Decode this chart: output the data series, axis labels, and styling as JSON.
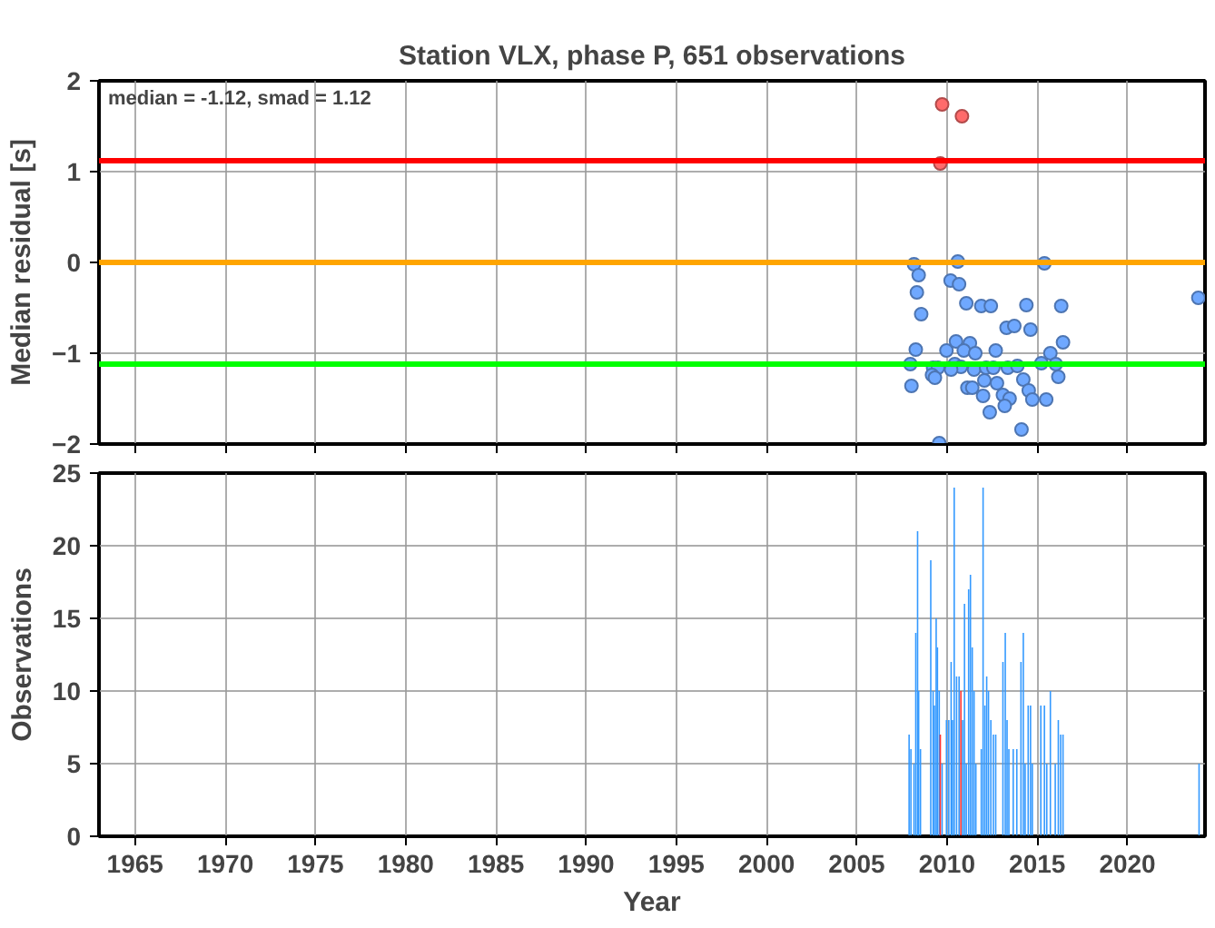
{
  "chart_data": [
    {
      "type": "scatter",
      "title": "Station VLX, phase P, 651 observations",
      "ylabel": "Median residual [s]",
      "annotations": [
        "median = -1.12, smad = 1.12"
      ],
      "x": [
        2009.73,
        2010.83,
        2009.63,
        2008.17,
        2008.43,
        2008.33,
        2008.57,
        2008.27,
        2007.97,
        2008.03,
        2010.6,
        2010.2,
        2010.67,
        2011.07,
        2011.9,
        2012.43,
        2014.4,
        2016.33,
        2015.4,
        2013.3,
        2013.73,
        2014.63,
        2016.43,
        2015.73,
        2016.03,
        2016.17,
        2015.23,
        2009.97,
        2010.5,
        2011.27,
        2010.93,
        2011.57,
        2012.7,
        2010.43,
        2010.77,
        2009.23,
        2009.5,
        2009.17,
        2009.33,
        2010.23,
        2011.5,
        2012.17,
        2012.57,
        2013.37,
        2013.9,
        2012.07,
        2012.77,
        2011.13,
        2011.4,
        2012.0,
        2013.1,
        2013.47,
        2013.2,
        2012.37,
        2014.23,
        2014.53,
        2014.73,
        2015.5,
        2014.13,
        2009.57,
        2023.93
      ],
      "values": [
        1.74,
        1.61,
        1.09,
        -0.02,
        -0.14,
        -0.33,
        -0.57,
        -0.96,
        -1.12,
        -1.36,
        0.01,
        -0.2,
        -0.24,
        -0.45,
        -0.48,
        -0.48,
        -0.47,
        -0.48,
        -0.01,
        -0.72,
        -0.7,
        -0.74,
        -0.88,
        -1.0,
        -1.12,
        -1.26,
        -1.11,
        -0.97,
        -0.87,
        -0.89,
        -0.97,
        -1.0,
        -0.97,
        -1.12,
        -1.15,
        -1.16,
        -1.16,
        -1.24,
        -1.27,
        -1.18,
        -1.18,
        -1.16,
        -1.16,
        -1.16,
        -1.14,
        -1.3,
        -1.33,
        -1.38,
        -1.38,
        -1.47,
        -1.46,
        -1.5,
        -1.58,
        -1.65,
        -1.29,
        -1.41,
        -1.51,
        -1.51,
        -1.84,
        -1.99,
        -0.39
      ],
      "colors": [
        "#ff6b6b",
        "#ff6b6b",
        "#ff6b6b",
        "#6fa8ff",
        "#6fa8ff",
        "#6fa8ff",
        "#6fa8ff",
        "#6fa8ff",
        "#6fa8ff",
        "#6fa8ff",
        "#6fa8ff",
        "#6fa8ff",
        "#6fa8ff",
        "#6fa8ff",
        "#6fa8ff",
        "#6fa8ff",
        "#6fa8ff",
        "#6fa8ff",
        "#6fa8ff",
        "#6fa8ff",
        "#6fa8ff",
        "#6fa8ff",
        "#6fa8ff",
        "#6fa8ff",
        "#6fa8ff",
        "#6fa8ff",
        "#6fa8ff",
        "#6fa8ff",
        "#6fa8ff",
        "#6fa8ff",
        "#6fa8ff",
        "#6fa8ff",
        "#6fa8ff",
        "#6fa8ff",
        "#6fa8ff",
        "#6fa8ff",
        "#6fa8ff",
        "#6fa8ff",
        "#6fa8ff",
        "#6fa8ff",
        "#6fa8ff",
        "#6fa8ff",
        "#6fa8ff",
        "#6fa8ff",
        "#6fa8ff",
        "#6fa8ff",
        "#6fa8ff",
        "#6fa8ff",
        "#6fa8ff",
        "#6fa8ff",
        "#6fa8ff",
        "#6fa8ff",
        "#6fa8ff",
        "#6fa8ff",
        "#6fa8ff",
        "#6fa8ff",
        "#6fa8ff",
        "#6fa8ff",
        "#6fa8ff",
        "#6fa8ff",
        "#6fa8ff"
      ],
      "marker": "circle",
      "xlim": [
        1963,
        2024.3
      ],
      "xticks": [
        1965,
        1970,
        1975,
        1980,
        1985,
        1990,
        1995,
        2000,
        2005,
        2010,
        2015,
        2020
      ],
      "ylim": [
        -2,
        2
      ],
      "yticks": [
        -2,
        -1,
        0,
        1,
        2
      ],
      "grid": true,
      "tick_labels": "y",
      "ref_lines": [
        {
          "axis": "y",
          "value": 1.12,
          "color": "#ff0000"
        },
        {
          "axis": "y",
          "value": 0,
          "color": "#ffa500"
        },
        {
          "axis": "y",
          "value": -1.12,
          "color": "#00ff00"
        }
      ]
    },
    {
      "type": "bar",
      "ylabel": "Observations",
      "xlabel": "Year",
      "x": [
        2007.9,
        2008.0,
        2008.17,
        2008.27,
        2008.37,
        2008.43,
        2008.53,
        2009.1,
        2009.23,
        2009.3,
        2009.4,
        2009.47,
        2009.57,
        2009.63,
        2009.73,
        2009.97,
        2010.1,
        2010.23,
        2010.3,
        2010.4,
        2010.53,
        2010.67,
        2010.77,
        2010.87,
        2010.97,
        2011.07,
        2011.2,
        2011.3,
        2011.4,
        2011.5,
        2011.6,
        2011.9,
        2012.0,
        2012.1,
        2012.2,
        2012.3,
        2012.43,
        2012.57,
        2012.7,
        2013.1,
        2013.23,
        2013.33,
        2013.43,
        2013.67,
        2013.87,
        2014.1,
        2014.23,
        2014.33,
        2014.5,
        2014.63,
        2014.73,
        2015.2,
        2015.4,
        2015.53,
        2015.73,
        2016.0,
        2016.17,
        2016.3,
        2016.43,
        2023.97
      ],
      "values": [
        7,
        6,
        5,
        14,
        21,
        10,
        6,
        19,
        10,
        9,
        15,
        13,
        10,
        7,
        5,
        8,
        8,
        12,
        8,
        24,
        11,
        11,
        10,
        8,
        16,
        5,
        17,
        18,
        13,
        10,
        5,
        6,
        24,
        9,
        11,
        10,
        8,
        7,
        7,
        12,
        14,
        8,
        6,
        6,
        6,
        12,
        14,
        5,
        9,
        9,
        5,
        9,
        9,
        5,
        10,
        5,
        8,
        7,
        7,
        5
      ],
      "colors": [
        "#3399ff",
        "#3399ff",
        "#3399ff",
        "#3399ff",
        "#3399ff",
        "#3399ff",
        "#3399ff",
        "#3399ff",
        "#3399ff",
        "#3399ff",
        "#3399ff",
        "#3399ff",
        "#3399ff",
        "#ff3333",
        "#3399ff",
        "#3399ff",
        "#3399ff",
        "#3399ff",
        "#3399ff",
        "#3399ff",
        "#3399ff",
        "#3399ff",
        "#ff3333",
        "#3399ff",
        "#3399ff",
        "#3399ff",
        "#3399ff",
        "#3399ff",
        "#3399ff",
        "#3399ff",
        "#3399ff",
        "#3399ff",
        "#3399ff",
        "#3399ff",
        "#3399ff",
        "#3399ff",
        "#3399ff",
        "#3399ff",
        "#3399ff",
        "#3399ff",
        "#3399ff",
        "#3399ff",
        "#3399ff",
        "#3399ff",
        "#3399ff",
        "#3399ff",
        "#3399ff",
        "#3399ff",
        "#3399ff",
        "#3399ff",
        "#3399ff",
        "#3399ff",
        "#3399ff",
        "#3399ff",
        "#3399ff",
        "#3399ff",
        "#3399ff",
        "#3399ff",
        "#3399ff",
        "#3399ff"
      ],
      "xlim": [
        1963,
        2024.3
      ],
      "xticks": [
        1965,
        1970,
        1975,
        1980,
        1985,
        1990,
        1995,
        2000,
        2005,
        2010,
        2015,
        2020
      ],
      "ylim": [
        0,
        25
      ],
      "yticks": [
        0,
        5,
        10,
        15,
        20,
        25
      ],
      "grid": true
    }
  ]
}
